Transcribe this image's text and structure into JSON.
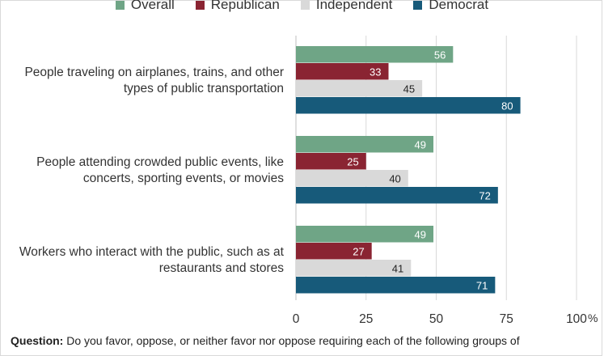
{
  "chart_data": {
    "type": "bar",
    "orientation": "horizontal",
    "categories": [
      [
        "People traveling on airplanes, trains, and other",
        "types of public transportation"
      ],
      [
        "People attending crowded public events, like",
        "concerts, sporting events, or movies"
      ],
      [
        "Workers who interact with the public, such as at",
        "restaurants and stores"
      ]
    ],
    "series": [
      {
        "name": "Overall",
        "color": "#6fa586",
        "label_color": "#ffffff",
        "values": [
          56,
          49,
          49
        ]
      },
      {
        "name": "Republican",
        "color": "#8a2432",
        "label_color": "#ffffff",
        "values": [
          33,
          25,
          27
        ]
      },
      {
        "name": "Independent",
        "color": "#d9d9d9",
        "label_color": "#222222",
        "values": [
          45,
          40,
          41
        ]
      },
      {
        "name": "Democrat",
        "color": "#175a7a",
        "label_color": "#ffffff",
        "values": [
          80,
          72,
          71
        ]
      }
    ],
    "xlim": [
      0,
      100
    ],
    "xticks": [
      "0",
      "25",
      "50",
      "75",
      "100"
    ],
    "x_unit": "%",
    "grid": true,
    "legend_position": "top"
  },
  "footnote": {
    "label": "Question:",
    "text": " Do you favor, oppose, or neither favor nor oppose requiring each of the following groups of"
  }
}
